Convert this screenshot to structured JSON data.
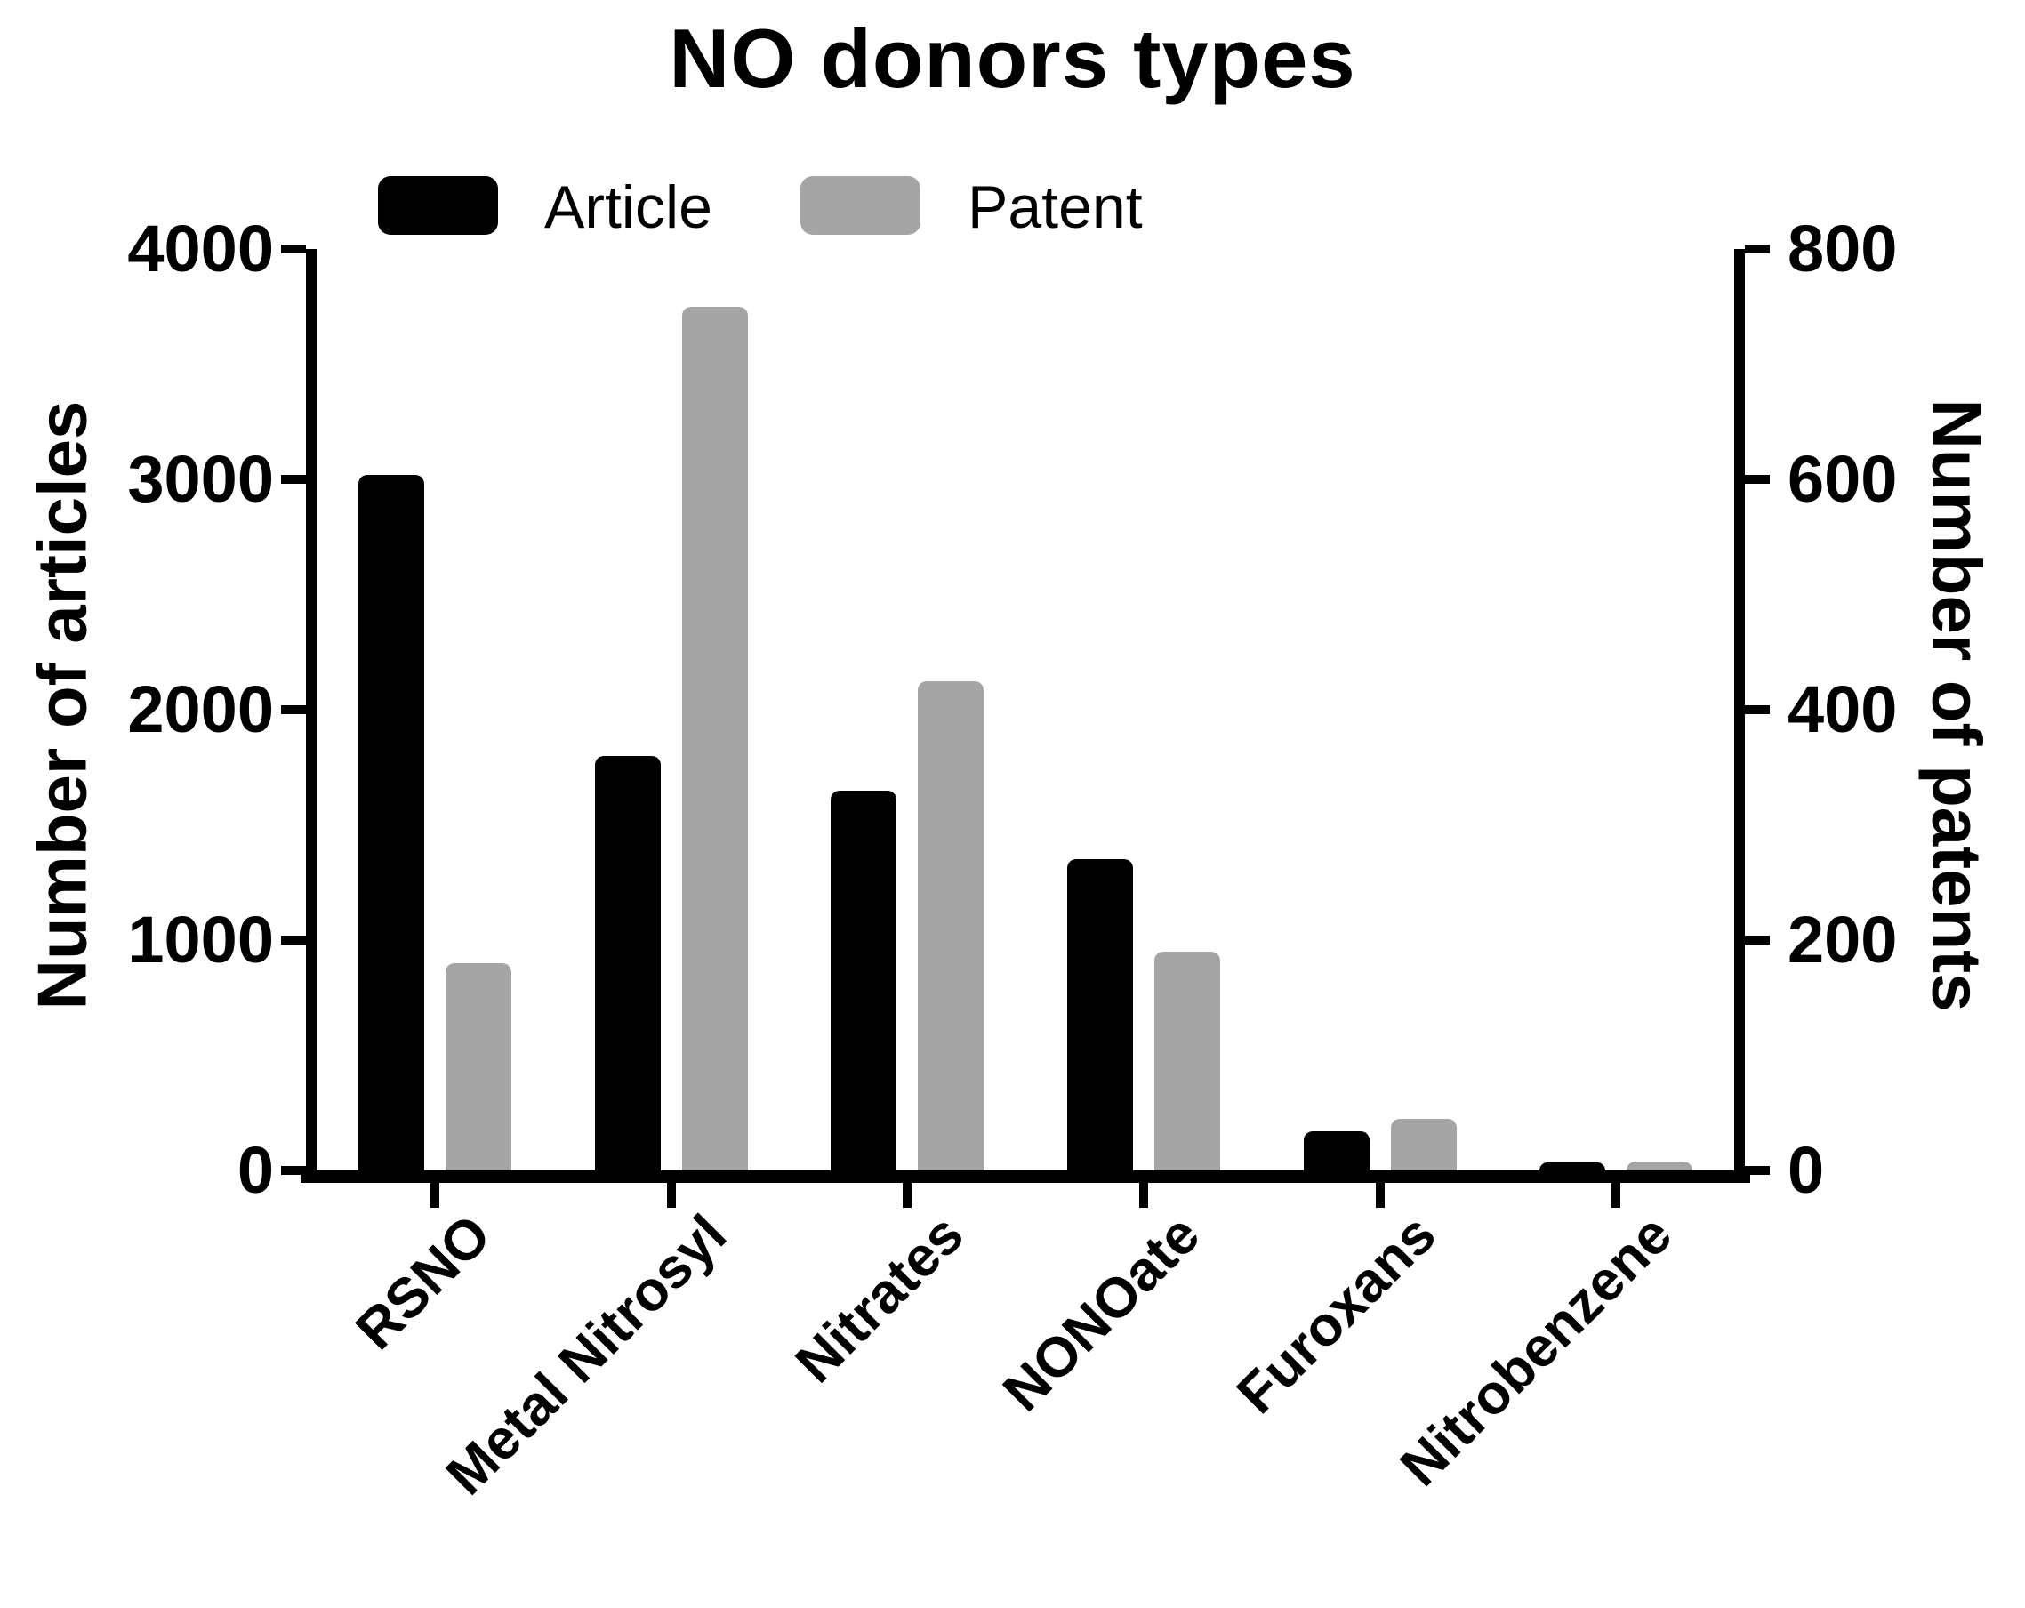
{
  "title": "NO donors types",
  "legend": {
    "items": [
      {
        "label": "Article",
        "color": "#000000"
      },
      {
        "label": "Patent",
        "color": "#A5A5A5"
      }
    ]
  },
  "chart_data": {
    "type": "bar",
    "title": "NO donors types",
    "categories": [
      "RSNO",
      "Metal Nitrosyl",
      "Nitrates",
      "NONOate",
      "Furoxans",
      "Nitrobenzene"
    ],
    "series": [
      {
        "name": "Article",
        "axis": "left",
        "color": "#000000",
        "values": [
          3020,
          1800,
          1650,
          1350,
          170,
          35
        ]
      },
      {
        "name": "Patent",
        "axis": "right",
        "color": "#A5A5A5",
        "values": [
          180,
          750,
          425,
          190,
          45,
          8
        ]
      }
    ],
    "left_axis": {
      "label": "Number of articles",
      "min": 0,
      "max": 4000,
      "ticks": [
        0,
        1000,
        2000,
        3000,
        4000
      ]
    },
    "right_axis": {
      "label": "Number of patents",
      "min": 0,
      "max": 800,
      "ticks": [
        0,
        200,
        400,
        600,
        800
      ]
    },
    "legend_position": "top",
    "grid": false,
    "x_tick_label_rotation_deg": -45
  }
}
